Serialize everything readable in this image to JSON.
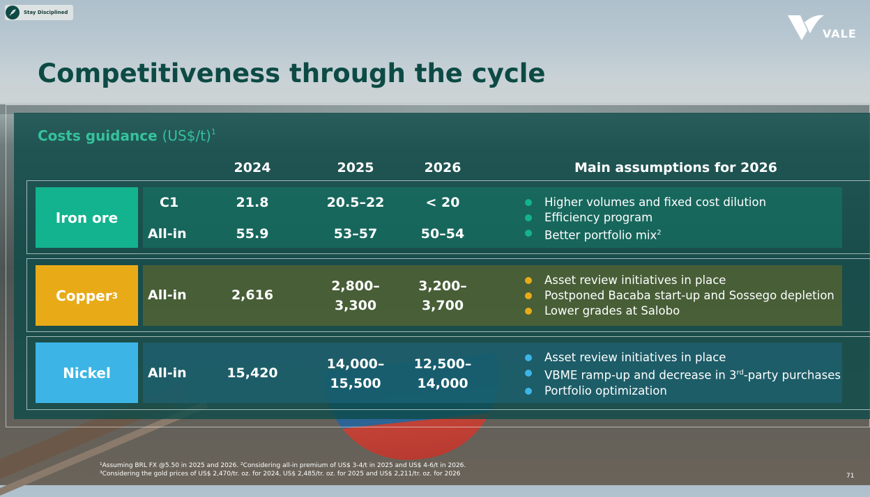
{
  "badge": {
    "text": "Stay Disciplined"
  },
  "logo": {
    "text": "VALE"
  },
  "title": "Competitiveness through the cycle",
  "costs": {
    "label": "Costs guidance",
    "unit": "(US$/t)",
    "sup": "1"
  },
  "columns": {
    "y2024": "2024",
    "y2025": "2025",
    "y2026": "2026",
    "assumptions": "Main assumptions for 2026"
  },
  "colors": {
    "iron": "#13b38f",
    "copper": "#e8ab17",
    "nickel": "#3cb5e6"
  },
  "iron_ore": {
    "label": "Iron ore",
    "c1": {
      "metric": "C1",
      "y2024": "21.8",
      "y2025": "20.5–22",
      "y2026": "< 20"
    },
    "allin": {
      "metric": "All-in",
      "y2024": "55.9",
      "y2025": "53–57",
      "y2026": "50–54"
    },
    "bullets": [
      "Higher volumes and fixed cost dilution",
      "Efficiency program",
      "Better portfolio mix"
    ],
    "bullet3_sup": "2"
  },
  "copper": {
    "label": "Copper",
    "sup": "3",
    "metric": "All-in",
    "y2024": "2,616",
    "y2025": [
      "2,800–",
      "3,300"
    ],
    "y2026": [
      "3,200–",
      "3,700"
    ],
    "bullets": [
      "Asset review initiatives in place",
      "Postponed Bacaba start-up and Sossego depletion",
      "Lower grades at Salobo"
    ]
  },
  "nickel": {
    "label": "Nickel",
    "metric": "All-in",
    "y2024": "15,420",
    "y2025": [
      "14,000–",
      "15,500"
    ],
    "y2026": [
      "12,500–",
      "14,000"
    ],
    "bullets": [
      "Asset review initiatives in place",
      "VBME ramp-up and decrease in 3",
      "rd",
      "-party purchases",
      "Portfolio optimization"
    ]
  },
  "footnotes": [
    "¹Assuming BRL FX @5.50 in 2025 and 2026.  ²Considering all-in premium of US$ 3-4/t in 2025 and US$ 4-6/t in 2026.",
    "³Considering the gold prices of US$ 2,470/tr. oz.  for 2024, US$ 2,485/tr. oz. for 2025 and US$ 2,211/tr. oz. for 2026"
  ],
  "page_number": "71"
}
